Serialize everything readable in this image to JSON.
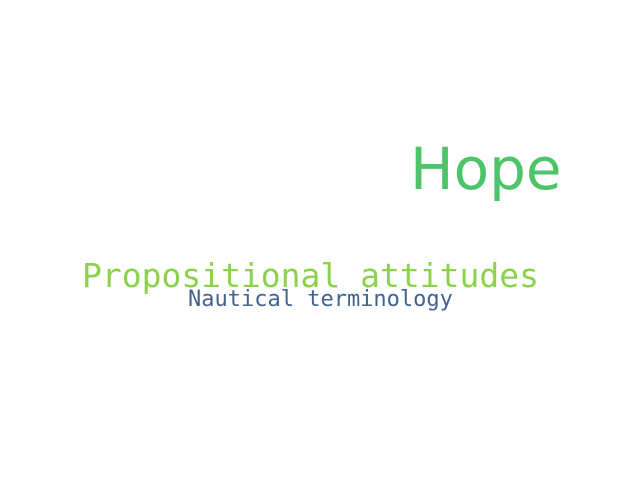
{
  "words": [
    {
      "text": "Hope",
      "color": "#4ec46a"
    },
    {
      "text": "Propositional attitudes",
      "color": "#8cd24f"
    },
    {
      "text": "Nautical terminology",
      "color": "#44628f"
    }
  ],
  "background": "#ffffff"
}
